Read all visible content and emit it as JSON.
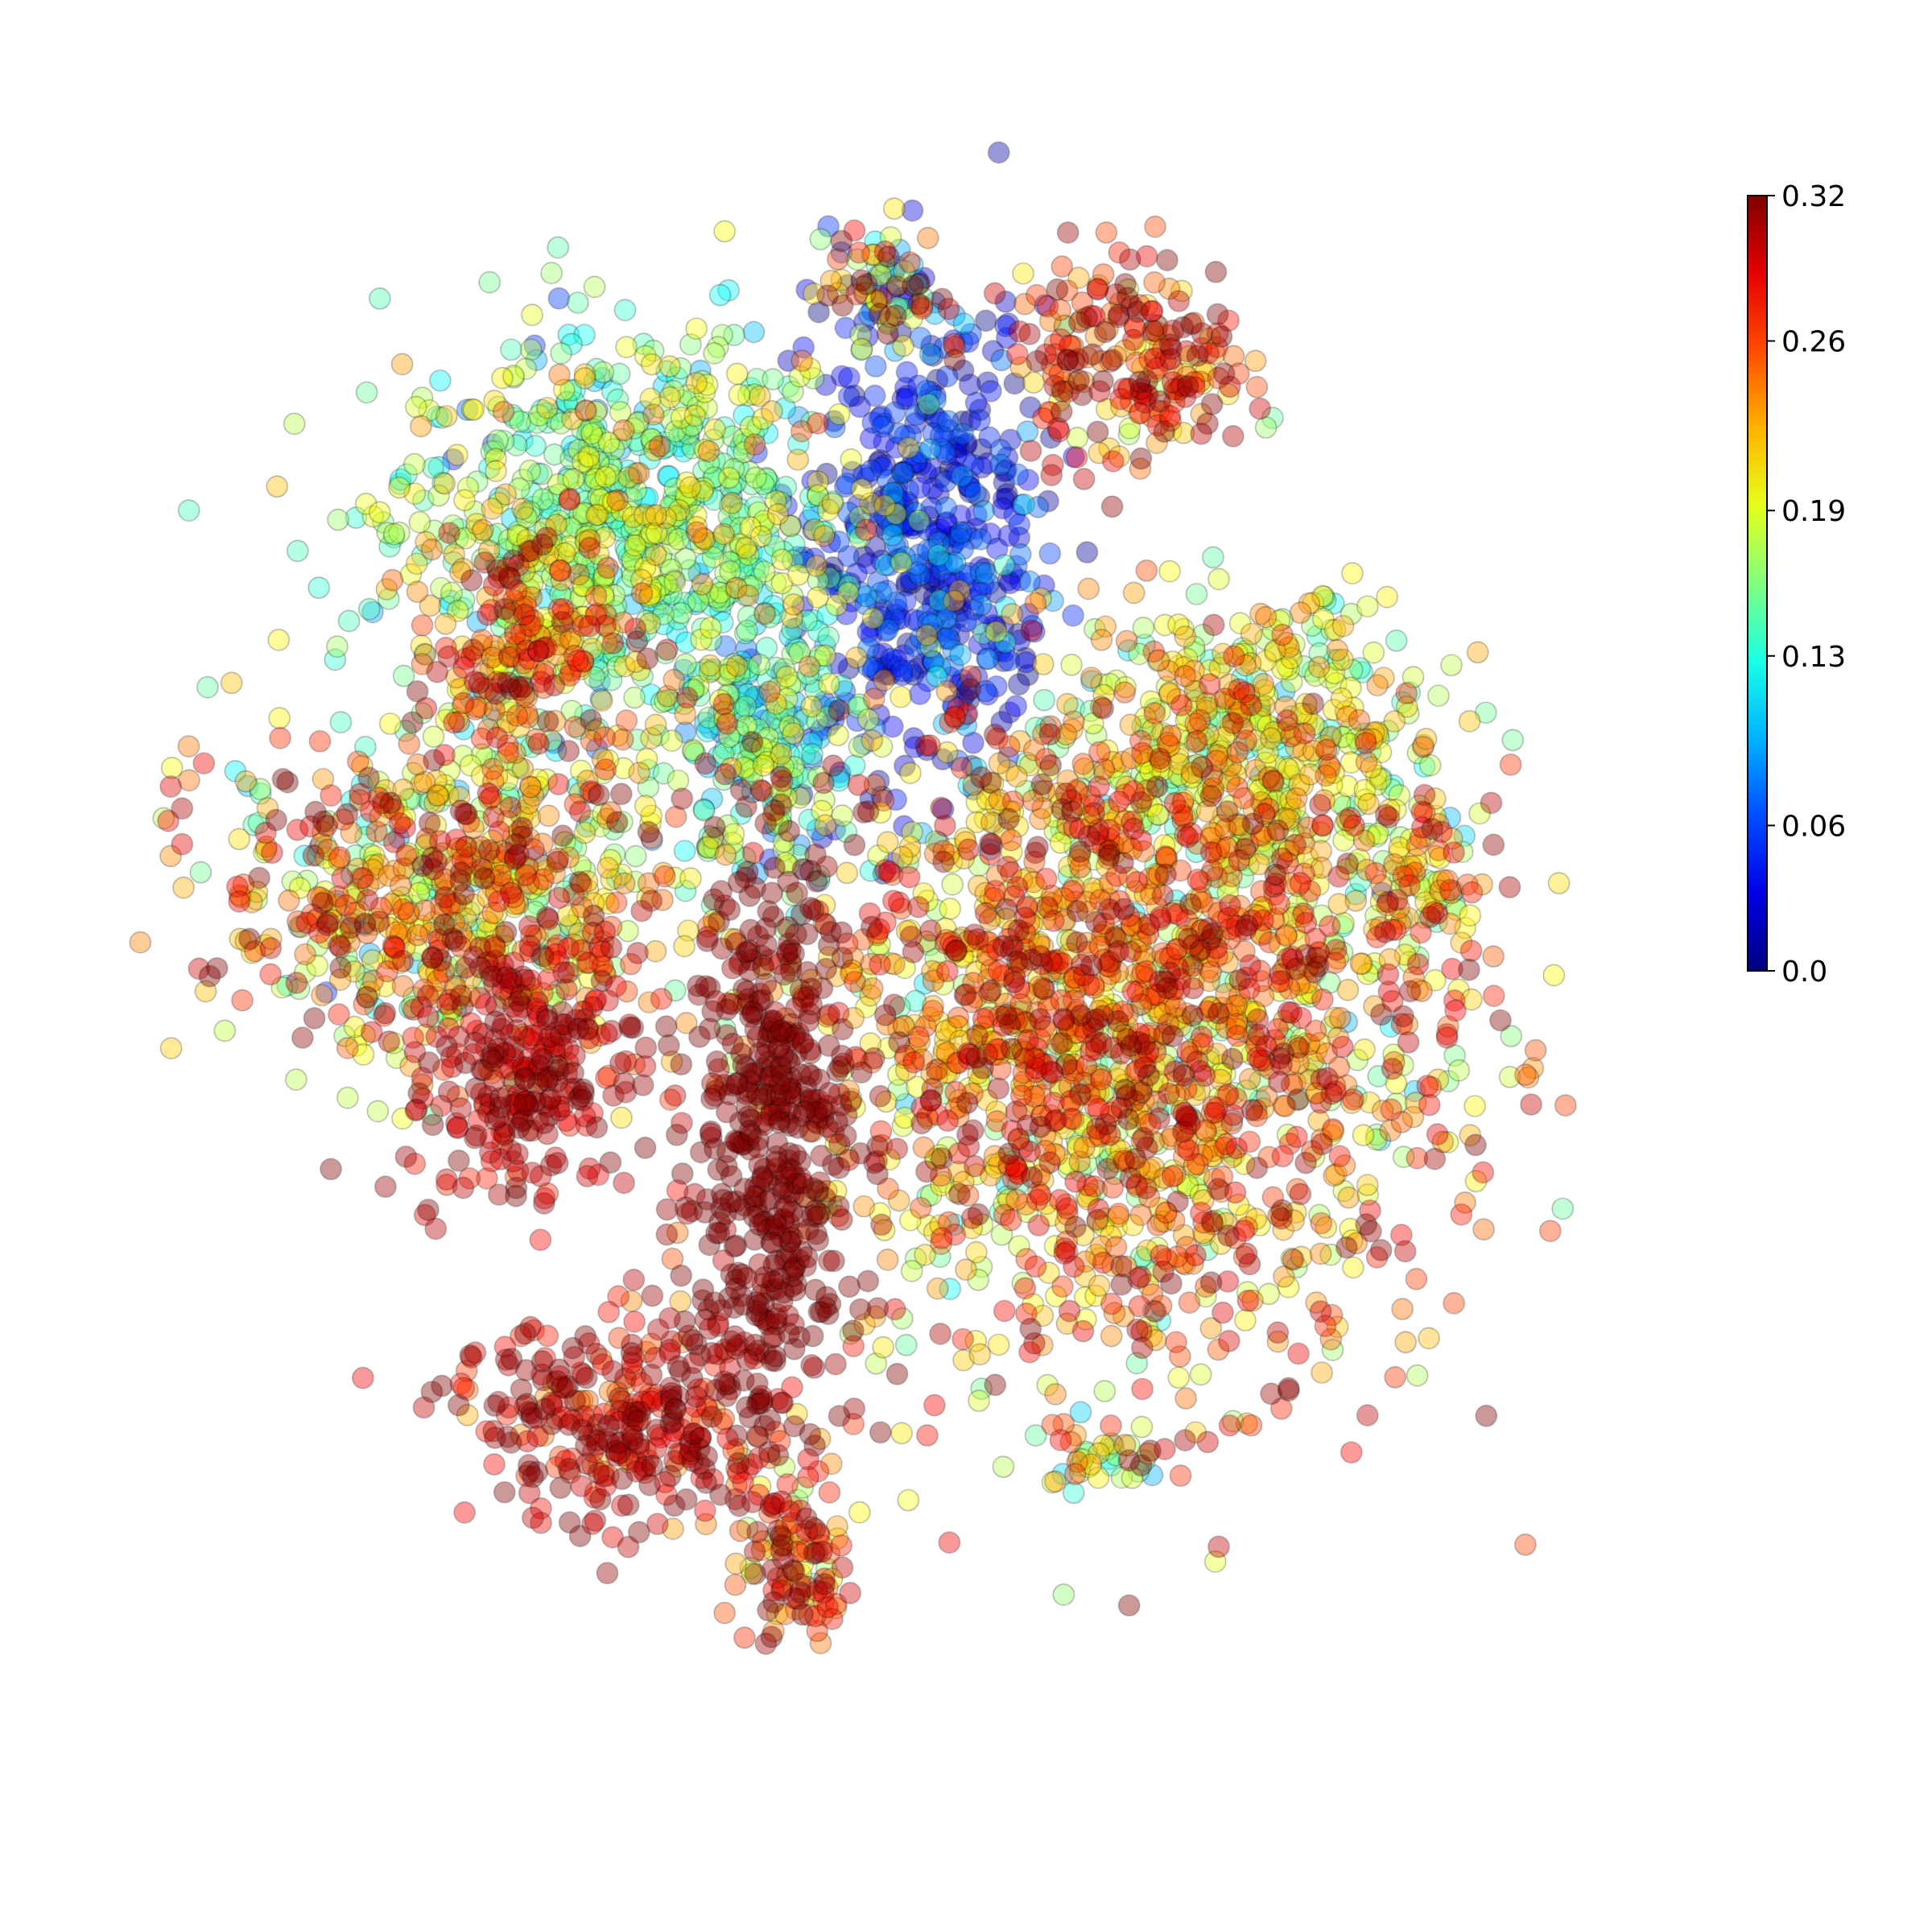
{
  "chart_data": {
    "type": "scatter",
    "title": "",
    "xlabel": "",
    "ylabel": "",
    "axes_visible": false,
    "grid": false,
    "marker": "circle",
    "marker_edge": "black",
    "marker_alpha": 0.4,
    "colormap": "jet",
    "colorbar": {
      "position": "right",
      "range": [
        0.0,
        0.32
      ],
      "ticks": [
        0.0,
        0.06,
        0.13,
        0.19,
        0.26,
        0.32
      ],
      "tick_labels": [
        "0.0",
        "0.06",
        "0.13",
        "0.19",
        "0.26",
        "0.32"
      ]
    },
    "xlim": [
      0,
      100
    ],
    "ylim": [
      0,
      100
    ],
    "clusters": [
      {
        "label": "upper-left-blob",
        "center": [
          32,
          76
        ],
        "spread": [
          8,
          6
        ],
        "value_mean": 0.16,
        "value_sd": 0.04
      },
      {
        "label": "upper-left-lobe",
        "center": [
          25,
          69
        ],
        "spread": [
          3,
          3
        ],
        "value_mean": 0.25,
        "value_sd": 0.05
      },
      {
        "label": "top-central-branch",
        "center": [
          53,
          75
        ],
        "spread": [
          4,
          7
        ],
        "value_mean": 0.04,
        "value_sd": 0.03
      },
      {
        "label": "top-spot",
        "center": [
          50,
          90
        ],
        "spread": [
          2,
          2
        ],
        "value_mean": 0.2,
        "value_sd": 0.1
      },
      {
        "label": "top-right-arc",
        "center": [
          67,
          86
        ],
        "spread": [
          4,
          3
        ],
        "value_mean": 0.27,
        "value_sd": 0.05
      },
      {
        "label": "middle-small-blob",
        "center": [
          42,
          63
        ],
        "spread": [
          3,
          4
        ],
        "value_mean": 0.14,
        "value_sd": 0.05
      },
      {
        "label": "left-blob",
        "center": [
          20,
          55
        ],
        "spread": [
          8,
          5
        ],
        "value_mean": 0.22,
        "value_sd": 0.06
      },
      {
        "label": "left-lower-red",
        "center": [
          25,
          44
        ],
        "spread": [
          4,
          4
        ],
        "value_mean": 0.3,
        "value_sd": 0.02
      },
      {
        "label": "bottom-left-arc",
        "center": [
          32,
          23
        ],
        "spread": [
          6,
          3
        ],
        "value_mean": 0.29,
        "value_sd": 0.03
      },
      {
        "label": "center-dark-red",
        "center": [
          42,
          40
        ],
        "spread": [
          3,
          9
        ],
        "value_mean": 0.32,
        "value_sd": 0.01
      },
      {
        "label": "large-right-blob",
        "center": [
          66,
          46
        ],
        "spread": [
          11,
          10
        ],
        "value_mean": 0.24,
        "value_sd": 0.05
      },
      {
        "label": "upper-right-blob",
        "center": [
          76,
          63
        ],
        "spread": [
          6,
          4
        ],
        "value_mean": 0.19,
        "value_sd": 0.04
      },
      {
        "label": "far-right-small",
        "center": [
          87,
          55
        ],
        "spread": [
          2,
          2
        ],
        "value_mean": 0.2,
        "value_sd": 0.05
      },
      {
        "label": "bottom-tail-a",
        "center": [
          44,
          15
        ],
        "spread": [
          2,
          3
        ],
        "value_mean": 0.26,
        "value_sd": 0.05
      },
      {
        "label": "bottom-right-streak",
        "center": [
          65,
          21
        ],
        "spread": [
          2,
          1
        ],
        "value_mean": 0.2,
        "value_sd": 0.08
      }
    ]
  }
}
